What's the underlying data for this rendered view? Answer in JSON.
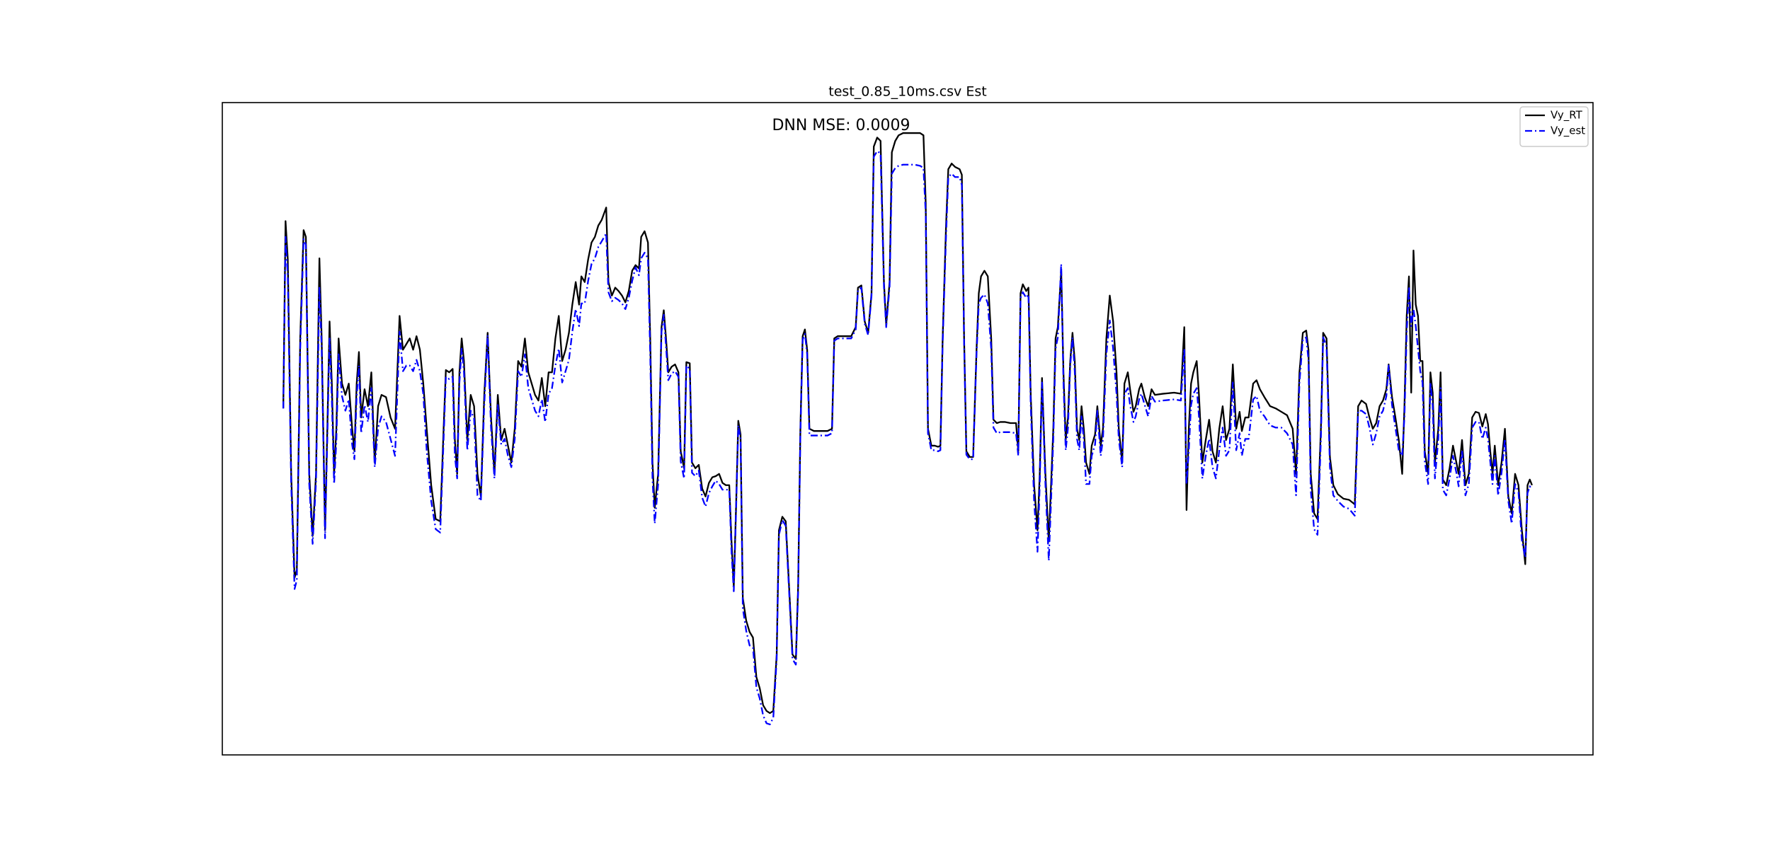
{
  "chart_data": {
    "type": "line",
    "title": "test_0.85_10ms.csv Est",
    "annotation": {
      "text": "DNN MSE: 0.0009",
      "color": "#ff0000"
    },
    "legend": "upper right",
    "xlim": [
      -54,
      1160
    ],
    "ylim": [
      0,
      578
    ],
    "x": [
      0,
      2,
      4,
      7,
      10,
      12,
      15,
      18,
      20,
      23,
      26,
      29,
      32,
      34,
      37,
      39,
      41,
      43,
      45,
      47,
      49,
      52,
      55,
      58,
      61,
      63,
      65,
      67,
      69,
      72,
      75,
      78,
      81,
      84,
      87,
      91,
      95,
      99,
      103,
      106,
      109,
      112,
      115,
      118,
      121,
      124,
      127,
      131,
      135,
      139,
      142,
      144,
      147,
      150,
      152,
      154,
      156,
      158,
      160,
      163,
      166,
      169,
      172,
      175,
      178,
      181,
      184,
      187,
      190,
      193,
      196,
      199,
      202,
      205,
      208,
      211,
      214,
      217,
      220,
      223,
      226,
      229,
      232,
      235,
      238,
      241,
      244,
      247,
      250,
      253,
      256,
      259,
      262,
      264,
      267,
      270,
      273,
      276,
      279,
      282,
      286,
      288,
      291,
      294,
      297,
      300,
      303,
      306,
      309,
      312,
      315,
      317,
      320,
      323,
      325,
      327,
      329,
      332,
      335,
      337,
      339,
      341,
      344,
      347,
      350,
      352,
      355,
      357,
      360,
      362,
      365,
      368,
      371,
      374,
      377,
      380,
      383,
      386,
      389,
      392,
      395,
      397,
      399,
      401,
      403,
      405,
      407,
      410,
      413,
      416,
      419,
      422,
      425,
      428,
      431,
      434,
      437,
      439,
      442,
      445,
      448,
      451,
      454,
      456,
      458,
      460,
      462,
      464,
      466,
      470,
      474,
      478,
      482,
      486,
      488,
      491,
      495,
      499,
      503,
      507,
      509,
      512,
      515,
      518,
      521,
      523,
      526,
      529,
      532,
      534,
      537,
      539,
      542,
      545,
      549,
      554,
      559,
      564,
      567,
      569,
      571,
      574,
      577,
      580,
      582,
      584,
      587,
      589,
      592,
      595,
      599,
      601,
      603,
      605,
      608,
      611,
      614,
      616,
      618,
      621,
      624,
      627,
      629,
      632,
      635,
      639,
      644,
      649,
      651,
      653,
      655,
      658,
      660,
      662,
      665,
      668,
      670,
      672,
      675,
      678,
      680,
      682,
      684,
      686,
      689,
      691,
      693,
      695,
      697,
      699,
      701,
      703,
      705,
      707,
      709,
      711,
      714,
      716,
      719,
      721,
      724,
      726,
      729,
      732,
      735,
      738,
      740,
      743,
      745,
      748,
      750,
      753,
      755,
      758,
      760,
      763,
      766,
      769,
      772,
      779,
      789,
      795,
      798,
      800,
      802,
      804,
      806,
      809,
      811,
      814,
      817,
      820,
      823,
      826,
      829,
      832,
      835,
      838,
      841,
      844,
      847,
      849,
      852,
      855,
      859,
      862,
      865,
      869,
      874,
      879,
      884,
      889,
      894,
      897,
      900,
      903,
      906,
      908,
      910,
      913,
      916,
      919,
      921,
      924,
      927,
      930,
      934,
      939,
      944,
      949,
      952,
      955,
      959,
      962,
      965,
      968,
      971,
      974,
      977,
      979,
      982,
      985,
      988,
      991,
      993,
      995,
      997,
      999,
      1001,
      1003,
      1005,
      1007,
      1009,
      1011,
      1014,
      1016,
      1018,
      1020,
      1023,
      1025,
      1027,
      1030,
      1033,
      1036,
      1039,
      1041,
      1044,
      1047,
      1050,
      1053,
      1056,
      1059,
      1062,
      1065,
      1067,
      1069,
      1071,
      1073,
      1076,
      1079,
      1082,
      1085,
      1088,
      1091,
      1094,
      1097,
      1100,
      1102,
      1104,
      1106
    ],
    "series": [
      {
        "name": "Vy_RT",
        "color": "#000000",
        "linestyle": "solid",
        "values": [
          307,
          473,
          439,
          249,
          157,
          164,
          369,
          465,
          459,
          249,
          194,
          249,
          440,
          369,
          199,
          289,
          384,
          329,
          249,
          289,
          369,
          329,
          319,
          329,
          289,
          269,
          329,
          357,
          299,
          324,
          309,
          339,
          259,
          309,
          319,
          317,
          299,
          289,
          389,
          359,
          364,
          369,
          359,
          371,
          359,
          329,
          289,
          239,
          209,
          207,
          289,
          341,
          339,
          342,
          279,
          249,
          339,
          369,
          349,
          279,
          319,
          309,
          249,
          229,
          319,
          374,
          299,
          249,
          319,
          279,
          289,
          274,
          259,
          289,
          349,
          344,
          369,
          339,
          329,
          319,
          314,
          334,
          309,
          339,
          339,
          369,
          389,
          349,
          359,
          374,
          399,
          419,
          399,
          424,
          419,
          439,
          454,
          459,
          469,
          474,
          485,
          419,
          407,
          414,
          411,
          407,
          401,
          411,
          429,
          434,
          431,
          459,
          464,
          454,
          369,
          259,
          219,
          249,
          379,
          394,
          369,
          339,
          344,
          346,
          339,
          269,
          254,
          348,
          347,
          259,
          254,
          257,
          236,
          229,
          241,
          246,
          247,
          249,
          241,
          239,
          239,
          189,
          149,
          219,
          296,
          284,
          139,
          119,
          109,
          104,
          69,
          59,
          44,
          39,
          37,
          39,
          89,
          199,
          211,
          207,
          149,
          89,
          85,
          149,
          289,
          371,
          377,
          359,
          289,
          287,
          287,
          287,
          287,
          289,
          369,
          371,
          371,
          371,
          371,
          379,
          414,
          416,
          384,
          374,
          409,
          539,
          547,
          544,
          419,
          381,
          419,
          534,
          544,
          549,
          551,
          551,
          551,
          551,
          549,
          489,
          289,
          274,
          274,
          273,
          274,
          369,
          469,
          519,
          524,
          521,
          519,
          514,
          369,
          269,
          264,
          264,
          359,
          409,
          424,
          429,
          424,
          369,
          297,
          294,
          295,
          295,
          294,
          294,
          269,
          409,
          417,
          411,
          414,
          319,
          239,
          199,
          249,
          334,
          249,
          189,
          239,
          289,
          369,
          379,
          429,
          339,
          279,
          299,
          349,
          374,
          349,
          289,
          279,
          309,
          289,
          259,
          249,
          274,
          284,
          309,
          274,
          289,
          369,
          407,
          384,
          339,
          289,
          259,
          329,
          339,
          324,
          304,
          309,
          324,
          329,
          317,
          309,
          324,
          319,
          320,
          321,
          320,
          379,
          217,
          289,
          329,
          339,
          349,
          319,
          259,
          279,
          297,
          269,
          259,
          289,
          309,
          279,
          289,
          346,
          289,
          304,
          287,
          299,
          299,
          329,
          332,
          324,
          317,
          309,
          307,
          304,
          301,
          289,
          249,
          339,
          374,
          376,
          359,
          249,
          214,
          209,
          289,
          374,
          369,
          264,
          239,
          231,
          227,
          226,
          222,
          309,
          314,
          311,
          299,
          289,
          294,
          309,
          314,
          324,
          346,
          317,
          299,
          279,
          249,
          309,
          389,
          424,
          321,
          447,
          399,
          389,
          349,
          349,
          269,
          249,
          339,
          321,
          259,
          289,
          339,
          244,
          239,
          254,
          274,
          259,
          249,
          279,
          239,
          249,
          299,
          304,
          303,
          291,
          302,
          293,
          269,
          249,
          274,
          239,
          259,
          289,
          229,
          214,
          249,
          239,
          199,
          169,
          239,
          244,
          239
        ]
      },
      {
        "name": "Vy_est",
        "color": "#0000ff",
        "linestyle": "dashdot",
        "values": [
          307,
          459,
          425,
          240,
          147,
          155,
          360,
          457,
          452,
          240,
          187,
          242,
          415,
          360,
          192,
          280,
          370,
          315,
          240,
          278,
          355,
          318,
          305,
          315,
          275,
          262,
          318,
          345,
          285,
          310,
          295,
          325,
          255,
          290,
          300,
          295,
          280,
          265,
          375,
          340,
          345,
          345,
          340,
          350,
          340,
          320,
          270,
          225,
          200,
          197,
          280,
          335,
          333,
          335,
          265,
          245,
          330,
          360,
          340,
          270,
          305,
          298,
          230,
          225,
          310,
          372,
          290,
          245,
          310,
          275,
          280,
          265,
          255,
          280,
          340,
          335,
          355,
          325,
          315,
          305,
          300,
          315,
          295,
          320,
          325,
          345,
          360,
          330,
          340,
          350,
          375,
          395,
          380,
          400,
          400,
          420,
          435,
          440,
          450,
          455,
          462,
          410,
          402,
          405,
          403,
          400,
          395,
          405,
          420,
          432,
          425,
          440,
          445,
          440,
          355,
          245,
          205,
          240,
          375,
          390,
          362,
          332,
          338,
          340,
          335,
          260,
          245,
          345,
          342,
          250,
          247,
          252,
          228,
          220,
          232,
          238,
          243,
          240,
          235,
          235,
          235,
          180,
          145,
          215,
          292,
          280,
          130,
          110,
          97,
          95,
          60,
          50,
          35,
          28,
          27,
          33,
          85,
          195,
          208,
          203,
          145,
          85,
          80,
          145,
          285,
          368,
          373,
          355,
          283,
          283,
          283,
          283,
          283,
          285,
          367,
          369,
          369,
          369,
          369,
          377,
          412,
          414,
          382,
          372,
          407,
          530,
          535,
          533,
          415,
          379,
          415,
          515,
          520,
          522,
          523,
          523,
          523,
          522,
          520,
          480,
          285,
          270,
          270,
          269,
          270,
          365,
          460,
          512,
          515,
          512,
          512,
          505,
          365,
          266,
          262,
          262,
          355,
          400,
          405,
          408,
          400,
          360,
          290,
          285,
          286,
          286,
          286,
          285,
          265,
          405,
          410,
          405,
          408,
          310,
          225,
          180,
          240,
          330,
          240,
          172,
          225,
          280,
          360,
          370,
          435,
          330,
          270,
          290,
          345,
          370,
          340,
          280,
          270,
          300,
          280,
          240,
          240,
          265,
          275,
          305,
          265,
          280,
          355,
          385,
          360,
          320,
          280,
          255,
          320,
          325,
          310,
          295,
          300,
          315,
          320,
          310,
          300,
          318,
          313,
          314,
          315,
          314,
          360,
          240,
          270,
          310,
          320,
          325,
          300,
          245,
          265,
          280,
          255,
          245,
          270,
          290,
          265,
          270,
          330,
          270,
          285,
          265,
          280,
          280,
          315,
          318,
          305,
          300,
          292,
          290,
          290,
          285,
          275,
          230,
          330,
          368,
          370,
          350,
          235,
          200,
          195,
          280,
          370,
          362,
          255,
          230,
          225,
          220,
          218,
          212,
          305,
          305,
          302,
          290,
          275,
          285,
          300,
          305,
          318,
          345,
          310,
          290,
          270,
          265,
          300,
          375,
          415,
          380,
          395,
          380,
          360,
          340,
          330,
          260,
          240,
          330,
          310,
          245,
          280,
          325,
          235,
          230,
          245,
          265,
          250,
          238,
          270,
          230,
          240,
          290,
          295,
          295,
          280,
          290,
          280,
          260,
          240,
          265,
          230,
          250,
          280,
          225,
          205,
          240,
          233,
          190,
          175,
          232,
          238,
          235
        ]
      }
    ]
  }
}
